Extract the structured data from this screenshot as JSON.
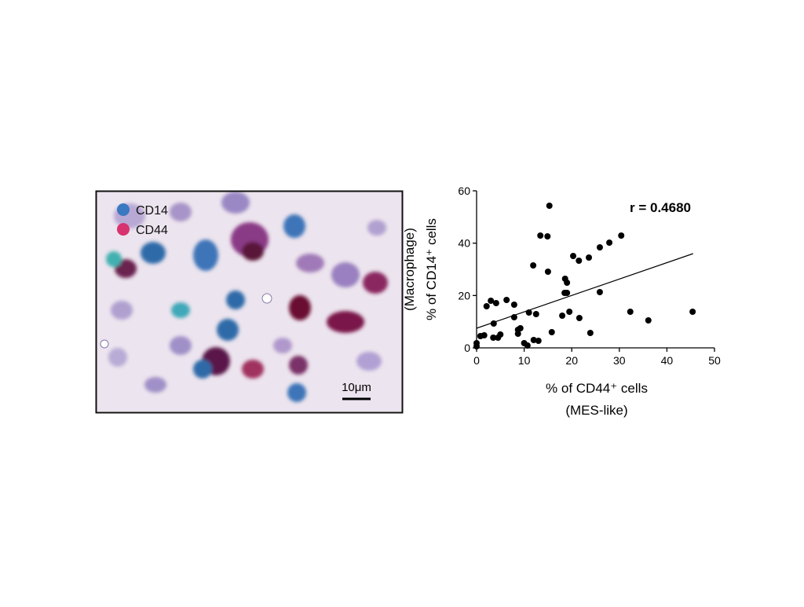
{
  "image_panel": {
    "legend": [
      "CD14",
      "CD44"
    ],
    "legend_colors": [
      "#3a78c0",
      "#d6336f"
    ],
    "scale_bar": "10μm"
  },
  "chart_data": {
    "type": "scatter",
    "annotation": "r = 0.4680",
    "x_label": "% of CD44⁺ cells",
    "x_sublabel": "(MES-like)",
    "y_label": "% of CD14⁺ cells",
    "y_sublabel": "(Macrophage)",
    "color": "#000000",
    "x": [
      0,
      0,
      0.8,
      1.6,
      2.1,
      3,
      3.5,
      3.6,
      4.1,
      4.5,
      5,
      6.3,
      7.9,
      7.9,
      8.7,
      9.2,
      8.7,
      10,
      10.7,
      11,
      11.9,
      12,
      12.5,
      13,
      13.4,
      14.9,
      15,
      15.3,
      15.8,
      18,
      18.5,
      18.6,
      19,
      19,
      19.5,
      20.3,
      21.5,
      21.6,
      23.6,
      23.9,
      25.9,
      25.9,
      27.9,
      30.4,
      32.3,
      36.1,
      45.4
    ],
    "y": [
      0.6,
      1.8,
      4.5,
      4.8,
      15.9,
      18,
      3.9,
      9.3,
      17.1,
      3.9,
      5.1,
      18.3,
      16.5,
      11.7,
      6.9,
      7.5,
      5.4,
      1.8,
      0.9,
      13.5,
      31.5,
      3,
      12.9,
      2.7,
      42.9,
      42.6,
      29.1,
      54.3,
      6,
      12.3,
      21,
      26.4,
      24.9,
      21,
      13.8,
      35.1,
      33.3,
      11.4,
      34.5,
      5.7,
      38.4,
      21.3,
      40.2,
      42.9,
      13.8,
      10.5,
      13.8
    ],
    "trend_line": {
      "x": [
        0,
        45.5
      ],
      "y": [
        7.5,
        36
      ]
    },
    "xlim": [
      0,
      50
    ],
    "xticks": [
      0,
      10,
      20,
      30,
      40,
      50
    ],
    "ylim": [
      0,
      60
    ],
    "yticks": [
      0,
      20,
      40,
      60
    ]
  }
}
